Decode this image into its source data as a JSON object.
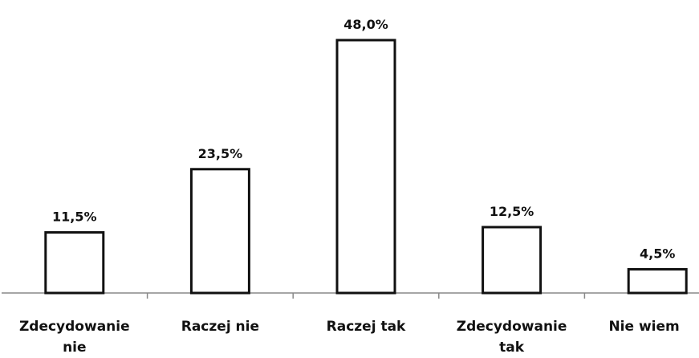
{
  "chart_data": {
    "type": "bar",
    "categories": [
      "Zdecydowanie nie",
      "Raczej nie",
      "Raczej tak",
      "Zdecydowanie tak",
      "Nie wiem"
    ],
    "values": [
      11.5,
      23.5,
      48.0,
      12.5,
      4.5
    ],
    "value_labels": [
      "11,5%",
      "23,5%",
      "48,0%",
      "12,5%",
      "4,5%"
    ],
    "color": "#ffffff"
  }
}
